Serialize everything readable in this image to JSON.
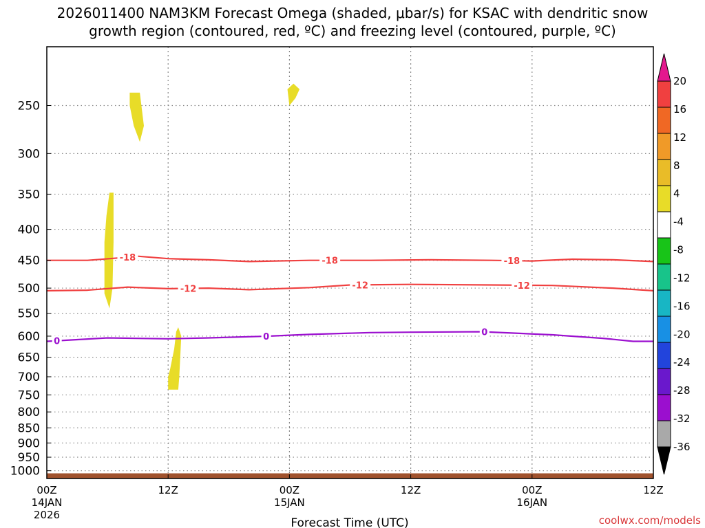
{
  "title": {
    "line1": "2026011400 NAM3KM Forecast Omega (shaded, μbar/s) for KSAC with dendritic snow",
    "line2": "growth region (contoured, red, ºC) and freezing level (contoured, purple, ºC)"
  },
  "credit": "coolwx.com/models",
  "chart_data": {
    "type": "time-height cross section",
    "title": "2026011400 NAM3KM Forecast Omega (shaded, μbar/s) for KSAC with dendritic snow growth region (contoured, red, ºC) and freezing level (contoured, purple, ºC)",
    "xlabel": "Forecast Time (UTC)",
    "ylabel": "",
    "x_ticks": [
      {
        "hour": 0,
        "line1": "00Z",
        "line2": "14JAN",
        "line3": "2026"
      },
      {
        "hour": 12,
        "line1": "12Z",
        "line2": "",
        "line3": ""
      },
      {
        "hour": 24,
        "line1": "00Z",
        "line2": "15JAN",
        "line3": ""
      },
      {
        "hour": 36,
        "line1": "12Z",
        "line2": "",
        "line3": ""
      },
      {
        "hour": 48,
        "line1": "00Z",
        "line2": "16JAN",
        "line3": ""
      },
      {
        "hour": 60,
        "line1": "12Z",
        "line2": "",
        "line3": ""
      }
    ],
    "xlim_hours": [
      0,
      60
    ],
    "y_ticks_hpa": [
      250,
      300,
      350,
      400,
      450,
      500,
      550,
      600,
      650,
      700,
      750,
      800,
      850,
      900,
      950,
      1000
    ],
    "ylim_hpa": [
      200,
      1030
    ],
    "y_scale": "log-pressure (inverted)",
    "grid": "dotted",
    "contours": [
      {
        "name": "-18",
        "units": "ºC",
        "color": "#f04040",
        "points": [
          [
            0,
            450
          ],
          [
            4,
            450
          ],
          [
            7,
            446
          ],
          [
            9,
            443
          ],
          [
            12,
            447
          ],
          [
            16,
            449
          ],
          [
            20,
            452
          ],
          [
            26,
            450
          ],
          [
            32,
            450
          ],
          [
            38,
            449
          ],
          [
            44,
            450
          ],
          [
            48,
            451
          ],
          [
            52,
            448
          ],
          [
            56,
            449
          ],
          [
            60,
            452
          ]
        ],
        "label_hours": [
          8,
          28,
          46
        ]
      },
      {
        "name": "-12",
        "units": "ºC",
        "color": "#f04040",
        "points": [
          [
            0,
            505
          ],
          [
            4,
            504
          ],
          [
            8,
            498
          ],
          [
            12,
            501
          ],
          [
            16,
            500
          ],
          [
            20,
            503
          ],
          [
            26,
            499
          ],
          [
            30,
            494
          ],
          [
            36,
            493
          ],
          [
            44,
            494
          ],
          [
            50,
            495
          ],
          [
            56,
            500
          ],
          [
            60,
            505
          ]
        ],
        "label_hours": [
          14,
          31,
          47
        ]
      },
      {
        "name": "0",
        "units": "ºC",
        "color": "#9b0fcf",
        "points": [
          [
            0,
            612
          ],
          [
            6,
            604
          ],
          [
            12,
            606
          ],
          [
            16,
            604
          ],
          [
            22,
            600
          ],
          [
            26,
            596
          ],
          [
            32,
            592
          ],
          [
            36,
            591
          ],
          [
            43,
            590
          ],
          [
            50,
            597
          ],
          [
            55,
            605
          ],
          [
            58,
            612
          ],
          [
            60,
            612
          ]
        ],
        "label_hours": [
          1,
          21.7,
          43.3
        ]
      }
    ],
    "omega_shaded_regions": [
      {
        "value_range": "4 to 8",
        "color": "#e8dc28",
        "points": [
          [
            8.2,
            238
          ],
          [
            9.2,
            238
          ],
          [
            9.6,
            270
          ],
          [
            9.2,
            287
          ],
          [
            8.6,
            270
          ],
          [
            8.2,
            250
          ]
        ]
      },
      {
        "value_range": "4 to 8",
        "color": "#e8dc28",
        "points": [
          [
            23.8,
            235
          ],
          [
            24.4,
            230
          ],
          [
            25,
            235
          ],
          [
            24.6,
            243
          ],
          [
            24,
            250
          ]
        ]
      },
      {
        "value_range": "4 to 8",
        "color": "#e8dc28",
        "points": [
          [
            6.2,
            348
          ],
          [
            6.6,
            348
          ],
          [
            6.6,
            420
          ],
          [
            6.5,
            500
          ],
          [
            6.2,
            540
          ],
          [
            5.7,
            510
          ],
          [
            5.7,
            420
          ],
          [
            5.9,
            380
          ]
        ]
      },
      {
        "value_range": "4 to 8",
        "color": "#e8dc28",
        "points": [
          [
            13,
            580
          ],
          [
            13.3,
            600
          ],
          [
            13.1,
            700
          ],
          [
            13,
            735
          ],
          [
            12,
            735
          ],
          [
            12,
            700
          ],
          [
            12.2,
            680
          ],
          [
            12.6,
            630
          ],
          [
            12.8,
            590
          ]
        ]
      }
    ],
    "terrain_hpa": 1010
  },
  "colorbar": {
    "labels": [
      "20",
      "16",
      "12",
      "8",
      "4",
      "-4",
      "-8",
      "-12",
      "-16",
      "-20",
      "-24",
      "-28",
      "-32",
      "-36"
    ],
    "bands": [
      "#e4188e",
      "#f04040",
      "#f06824",
      "#f09a28",
      "#e9bc28",
      "#e8dc28",
      "#ffffff",
      "#18c418",
      "#18c48a",
      "#18b6c4",
      "#1890e4",
      "#2244dc",
      "#6a18cc",
      "#9b0fcf",
      "#a9a9a9",
      "#000000"
    ]
  },
  "colors": {
    "terrain": "#a0522d",
    "grid": "#888888"
  }
}
